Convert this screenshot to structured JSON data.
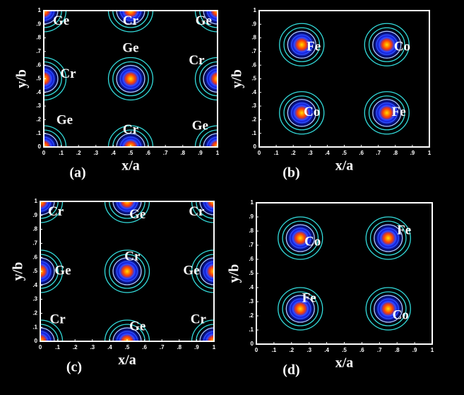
{
  "chart_data": [
    {
      "type": "contour",
      "caption": "(a)",
      "xlabel": "x/a",
      "ylabel": "y/b",
      "xlim": [
        0,
        1
      ],
      "ylim": [
        0,
        1
      ],
      "xticks": [
        0,
        {
          "value": 0.1,
          "label": ".1"
        },
        {
          "value": 0.2,
          "label": ".2"
        },
        {
          "value": 0.3,
          "label": ".3"
        },
        {
          "value": 0.4,
          "label": ".4"
        },
        {
          "value": 0.5,
          "label": ".5"
        },
        {
          "value": 0.6,
          "label": ".6"
        },
        {
          "value": 0.7,
          "label": ".7"
        },
        {
          "value": 0.8,
          "label": ".8"
        },
        {
          "value": 0.9,
          "label": ".9"
        },
        1
      ],
      "yticks": [
        0,
        {
          "value": 0.1,
          "label": ".1"
        },
        {
          "value": 0.2,
          "label": ".2"
        },
        {
          "value": 0.3,
          "label": ".3"
        },
        {
          "value": 0.4,
          "label": ".4"
        },
        {
          "value": 0.5,
          "label": ".5"
        },
        {
          "value": 0.6,
          "label": ".6"
        },
        {
          "value": 0.7,
          "label": ".7"
        },
        {
          "value": 0.8,
          "label": ".8"
        },
        {
          "value": 0.9,
          "label": ".9"
        },
        1
      ],
      "peaks": {
        "x": [
          0,
          1,
          0,
          1,
          0.5,
          0,
          1,
          0.5,
          0.5
        ],
        "y": [
          0,
          0,
          1,
          1,
          0,
          0.5,
          0.5,
          1,
          0.5
        ]
      },
      "annotations": [
        {
          "text": "Ge",
          "x": 0.1,
          "y": 0.92
        },
        {
          "text": "Cr",
          "x": 0.5,
          "y": 0.92
        },
        {
          "text": "Ge",
          "x": 0.92,
          "y": 0.92
        },
        {
          "text": "Ge",
          "x": 0.5,
          "y": 0.72
        },
        {
          "text": "Cr",
          "x": 0.14,
          "y": 0.53
        },
        {
          "text": "Cr",
          "x": 0.88,
          "y": 0.63
        },
        {
          "text": "Ge",
          "x": 0.12,
          "y": 0.19
        },
        {
          "text": "Cr",
          "x": 0.5,
          "y": 0.12
        },
        {
          "text": "Ge",
          "x": 0.9,
          "y": 0.15
        }
      ]
    },
    {
      "type": "contour",
      "caption": "(b)",
      "xlabel": "x/a",
      "ylabel": "y/b",
      "xlim": [
        0,
        1
      ],
      "ylim": [
        0,
        1
      ],
      "xticks": [
        0,
        {
          "value": 0.1,
          "label": ".1"
        },
        {
          "value": 0.2,
          "label": ".2"
        },
        {
          "value": 0.3,
          "label": ".3"
        },
        {
          "value": 0.4,
          "label": ".4"
        },
        {
          "value": 0.5,
          "label": ".5"
        },
        {
          "value": 0.6,
          "label": ".6"
        },
        {
          "value": 0.7,
          "label": ".7"
        },
        {
          "value": 0.8,
          "label": ".8"
        },
        {
          "value": 0.9,
          "label": ".9"
        },
        1
      ],
      "yticks": [
        0,
        {
          "value": 0.1,
          "label": ".1"
        },
        {
          "value": 0.2,
          "label": ".2"
        },
        {
          "value": 0.3,
          "label": ".3"
        },
        {
          "value": 0.4,
          "label": ".4"
        },
        {
          "value": 0.5,
          "label": ".5"
        },
        {
          "value": 0.6,
          "label": ".6"
        },
        {
          "value": 0.7,
          "label": ".7"
        },
        {
          "value": 0.8,
          "label": ".8"
        },
        {
          "value": 0.9,
          "label": ".9"
        },
        1
      ],
      "peaks": {
        "x": [
          0.25,
          0.75,
          0.25,
          0.75
        ],
        "y": [
          0.25,
          0.25,
          0.75,
          0.75
        ]
      },
      "annotations": [
        {
          "text": "Fe",
          "x": 0.32,
          "y": 0.73
        },
        {
          "text": "Co",
          "x": 0.84,
          "y": 0.73
        },
        {
          "text": "Co",
          "x": 0.31,
          "y": 0.25
        },
        {
          "text": "Fe",
          "x": 0.82,
          "y": 0.25
        }
      ]
    },
    {
      "type": "contour",
      "caption": "(c)",
      "xlabel": "x/a",
      "ylabel": "y/b",
      "xlim": [
        0,
        1
      ],
      "ylim": [
        0,
        1
      ],
      "xticks": [
        0,
        {
          "value": 0.1,
          "label": ".1"
        },
        {
          "value": 0.2,
          "label": ".2"
        },
        {
          "value": 0.3,
          "label": ".3"
        },
        {
          "value": 0.4,
          "label": ".4"
        },
        {
          "value": 0.5,
          "label": ".5"
        },
        {
          "value": 0.6,
          "label": ".6"
        },
        {
          "value": 0.7,
          "label": ".7"
        },
        {
          "value": 0.8,
          "label": ".8"
        },
        {
          "value": 0.9,
          "label": ".9"
        },
        1
      ],
      "yticks": [
        0,
        {
          "value": 0.1,
          "label": ".1"
        },
        {
          "value": 0.2,
          "label": ".2"
        },
        {
          "value": 0.3,
          "label": ".3"
        },
        {
          "value": 0.4,
          "label": ".4"
        },
        {
          "value": 0.5,
          "label": ".5"
        },
        {
          "value": 0.6,
          "label": ".6"
        },
        {
          "value": 0.7,
          "label": ".7"
        },
        {
          "value": 0.8,
          "label": ".8"
        },
        {
          "value": 0.9,
          "label": ".9"
        },
        1
      ],
      "peaks": {
        "x": [
          0,
          1,
          0,
          1,
          0.5,
          0,
          1,
          0.5,
          0.5
        ],
        "y": [
          0,
          0,
          1,
          1,
          0,
          0.5,
          0.5,
          1,
          0.5
        ]
      },
      "annotations": [
        {
          "text": "Cr",
          "x": 0.09,
          "y": 0.92
        },
        {
          "text": "Ge",
          "x": 0.56,
          "y": 0.9
        },
        {
          "text": "Cr",
          "x": 0.9,
          "y": 0.92
        },
        {
          "text": "Ge",
          "x": 0.13,
          "y": 0.5
        },
        {
          "text": "Cr",
          "x": 0.53,
          "y": 0.6
        },
        {
          "text": "Ge",
          "x": 0.87,
          "y": 0.5
        },
        {
          "text": "Cr",
          "x": 0.1,
          "y": 0.15
        },
        {
          "text": "Ge",
          "x": 0.56,
          "y": 0.1
        },
        {
          "text": "Cr",
          "x": 0.91,
          "y": 0.15
        }
      ]
    },
    {
      "type": "contour",
      "caption": "(d)",
      "xlabel": "x/a",
      "ylabel": "y/b",
      "xlim": [
        0,
        1
      ],
      "ylim": [
        0,
        1
      ],
      "xticks": [
        0,
        {
          "value": 0.1,
          "label": ".1"
        },
        {
          "value": 0.2,
          "label": ".2"
        },
        {
          "value": 0.3,
          "label": ".3"
        },
        {
          "value": 0.4,
          "label": ".4"
        },
        {
          "value": 0.5,
          "label": ".5"
        },
        {
          "value": 0.6,
          "label": ".6"
        },
        {
          "value": 0.7,
          "label": ".7"
        },
        {
          "value": 0.8,
          "label": ".8"
        },
        {
          "value": 0.9,
          "label": ".9"
        },
        1
      ],
      "yticks": [
        0,
        {
          "value": 0.1,
          "label": ".1"
        },
        {
          "value": 0.2,
          "label": ".2"
        },
        {
          "value": 0.3,
          "label": ".3"
        },
        {
          "value": 0.4,
          "label": ".4"
        },
        {
          "value": 0.5,
          "label": ".5"
        },
        {
          "value": 0.6,
          "label": ".6"
        },
        {
          "value": 0.7,
          "label": ".7"
        },
        {
          "value": 0.8,
          "label": ".8"
        },
        {
          "value": 0.9,
          "label": ".9"
        },
        1
      ],
      "peaks": {
        "x": [
          0.25,
          0.75,
          0.25,
          0.75
        ],
        "y": [
          0.25,
          0.25,
          0.75,
          0.75
        ]
      },
      "annotations": [
        {
          "text": "Co",
          "x": 0.32,
          "y": 0.72
        },
        {
          "text": "Fe",
          "x": 0.84,
          "y": 0.8
        },
        {
          "text": "Fe",
          "x": 0.3,
          "y": 0.32
        },
        {
          "text": "Co",
          "x": 0.82,
          "y": 0.2
        }
      ]
    }
  ]
}
